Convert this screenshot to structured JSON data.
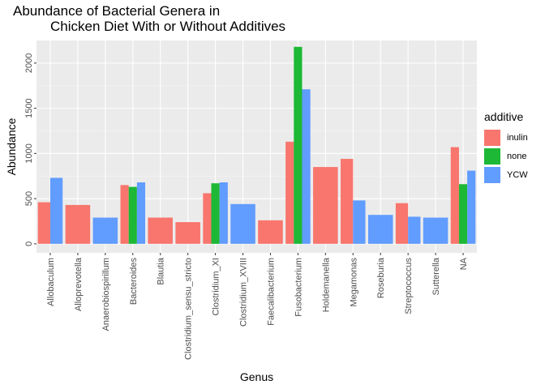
{
  "title_line1": "Abundance of Bacterial Genera in",
  "title_line2": "Chicken Diet With or Without Additives",
  "legend": {
    "title": "additive",
    "items": [
      {
        "label": "inulin",
        "color": "#F8766D"
      },
      {
        "label": "none",
        "color": "#1DB835"
      },
      {
        "label": "YCW",
        "color": "#619CFF"
      }
    ]
  },
  "chart_data": {
    "type": "bar",
    "xlabel": "Genus",
    "ylabel": "Abundance",
    "ylim": [
      -100,
      2250
    ],
    "yticks": [
      0,
      500,
      1000,
      1500,
      2000
    ],
    "categories": [
      "Allobaculum",
      "Alloprevotella",
      "Anaerobiospirillum",
      "Bacteroides",
      "Blautia",
      "Clostridium_sensu_stricto",
      "Clostridium_XI",
      "Clostridium_XVIII",
      "Faecalibacterium",
      "Fusobacterium",
      "Holdemanella",
      "Megamonas",
      "Roseburia",
      "Streptococcus",
      "Sutterella",
      "NA"
    ],
    "bars": [
      [
        {
          "series": "inulin",
          "value": 460
        },
        {
          "series": "YCW",
          "value": 730
        }
      ],
      [
        {
          "series": "inulin",
          "value": 430
        }
      ],
      [
        {
          "series": "YCW",
          "value": 290
        }
      ],
      [
        {
          "series": "inulin",
          "value": 650
        },
        {
          "series": "none",
          "value": 630
        },
        {
          "series": "YCW",
          "value": 680
        }
      ],
      [
        {
          "series": "inulin",
          "value": 290
        }
      ],
      [
        {
          "series": "inulin",
          "value": 240
        }
      ],
      [
        {
          "series": "inulin",
          "value": 560
        },
        {
          "series": "none",
          "value": 670
        },
        {
          "series": "YCW",
          "value": 680
        }
      ],
      [
        {
          "series": "YCW",
          "value": 440
        }
      ],
      [
        {
          "series": "inulin",
          "value": 260
        }
      ],
      [
        {
          "series": "inulin",
          "value": 1130
        },
        {
          "series": "none",
          "value": 2180
        },
        {
          "series": "YCW",
          "value": 1710
        }
      ],
      [
        {
          "series": "inulin",
          "value": 850
        }
      ],
      [
        {
          "series": "inulin",
          "value": 940
        },
        {
          "series": "YCW",
          "value": 480
        }
      ],
      [
        {
          "series": "YCW",
          "value": 320
        }
      ],
      [
        {
          "series": "inulin",
          "value": 450
        },
        {
          "series": "YCW",
          "value": 300
        }
      ],
      [
        {
          "series": "YCW",
          "value": 290
        }
      ],
      [
        {
          "series": "inulin",
          "value": 1070
        },
        {
          "series": "none",
          "value": 660
        },
        {
          "series": "YCW",
          "value": 810
        }
      ]
    ]
  }
}
